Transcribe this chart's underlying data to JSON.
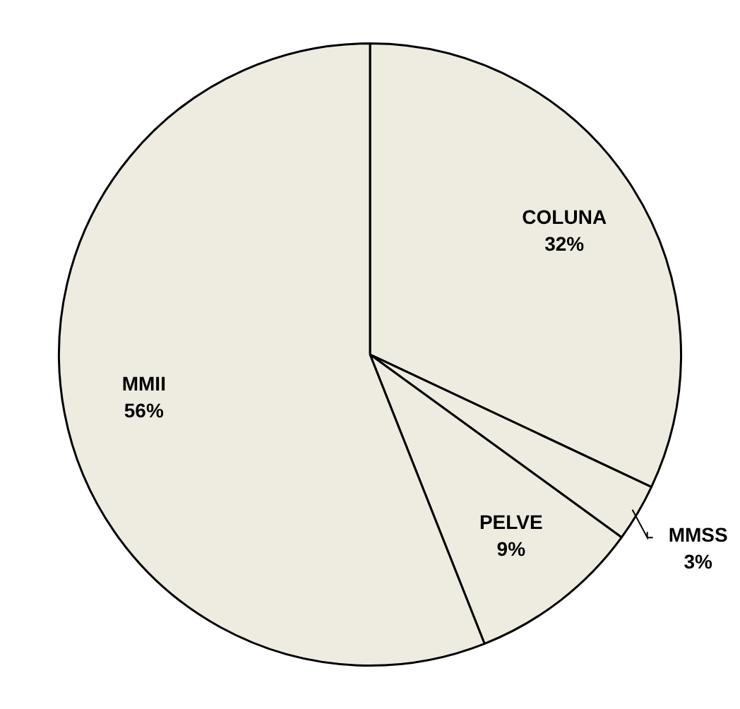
{
  "chart_data": {
    "type": "pie",
    "categories": [
      "COLUNA",
      "MMSS",
      "PELVE",
      "MMII"
    ],
    "values": [
      32,
      3,
      9,
      56
    ],
    "colors": [
      "#eeece1",
      "#eeece1",
      "#eeece1",
      "#eeece1"
    ],
    "value_labels": [
      "32%",
      "3%",
      "9%",
      "56%"
    ],
    "legend": false
  }
}
